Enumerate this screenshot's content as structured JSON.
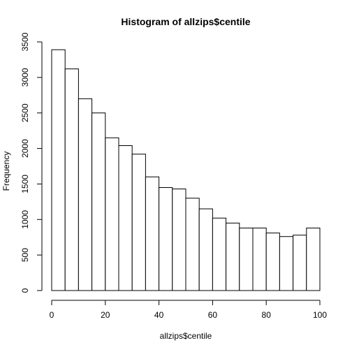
{
  "chart_data": {
    "type": "bar",
    "title": "Histogram of allzips$centile",
    "xlabel": "allzips$centile",
    "ylabel": "Frequency",
    "bin_edges": [
      0,
      5,
      10,
      15,
      20,
      25,
      30,
      35,
      40,
      45,
      50,
      55,
      60,
      65,
      70,
      75,
      80,
      85,
      90,
      95,
      100
    ],
    "values": [
      3390,
      3120,
      2700,
      2500,
      2150,
      2040,
      1920,
      1600,
      1450,
      1430,
      1300,
      1150,
      1020,
      950,
      880,
      880,
      810,
      760,
      780,
      880
    ],
    "xlim": [
      0,
      100
    ],
    "ylim": [
      0,
      3500
    ],
    "x_ticks": [
      0,
      20,
      40,
      60,
      80,
      100
    ],
    "y_ticks": [
      0,
      500,
      1000,
      1500,
      2000,
      2500,
      3000,
      3500
    ],
    "grid": false
  }
}
